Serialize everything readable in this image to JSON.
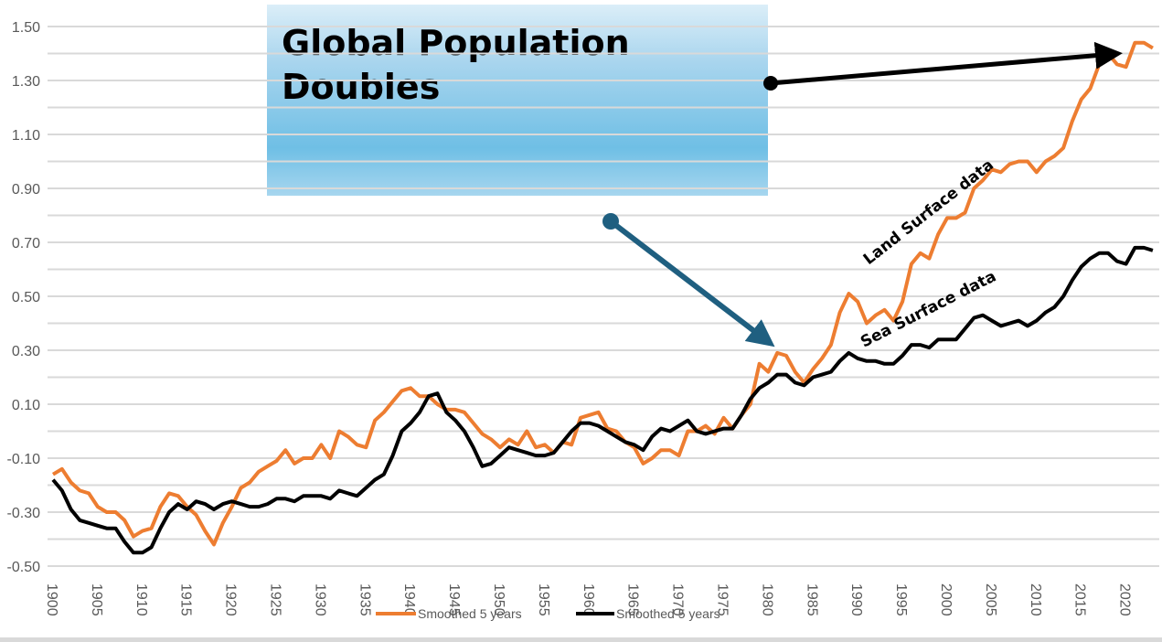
{
  "callout": {
    "title": "Global Population Doubles",
    "fill_top": "#dbeef8",
    "fill_mid": "#6fbfe5"
  },
  "annotations": {
    "land": "Land Surface data",
    "sea": "Sea Surface data"
  },
  "chart_data": {
    "type": "line",
    "title": "",
    "xlabel": "",
    "ylabel": "",
    "xlim": [
      1900,
      2023
    ],
    "ylim": [
      -0.5,
      1.5
    ],
    "yticks": [
      "-0.50",
      "-0.30",
      "-0.10",
      "0.10",
      "0.30",
      "0.50",
      "0.70",
      "0.90",
      "1.10",
      "1.30",
      "1.50"
    ],
    "ytick_values": [
      -0.5,
      -0.3,
      -0.1,
      0.1,
      0.3,
      0.5,
      0.7,
      0.9,
      1.1,
      1.3,
      1.5
    ],
    "xticks": [
      1900,
      1905,
      1910,
      1915,
      1920,
      1925,
      1930,
      1935,
      1940,
      1945,
      1950,
      1955,
      1960,
      1965,
      1970,
      1975,
      1980,
      1985,
      1990,
      1995,
      2000,
      2005,
      2010,
      2015,
      2020
    ],
    "grid": true,
    "legend_position": "bottom",
    "x_start": 1900,
    "series": [
      {
        "name": "Smoothed 5 years",
        "color": "#ed7d31",
        "values": [
          -0.16,
          -0.14,
          -0.19,
          -0.22,
          -0.23,
          -0.28,
          -0.3,
          -0.3,
          -0.33,
          -0.39,
          -0.37,
          -0.36,
          -0.28,
          -0.23,
          -0.24,
          -0.28,
          -0.31,
          -0.37,
          -0.42,
          -0.34,
          -0.28,
          -0.21,
          -0.19,
          -0.15,
          -0.13,
          -0.11,
          -0.07,
          -0.12,
          -0.1,
          -0.1,
          -0.05,
          -0.1,
          0.0,
          -0.02,
          -0.05,
          -0.06,
          0.04,
          0.07,
          0.11,
          0.15,
          0.16,
          0.13,
          0.13,
          0.1,
          0.08,
          0.08,
          0.07,
          0.03,
          -0.01,
          -0.03,
          -0.06,
          -0.03,
          -0.05,
          0.0,
          -0.06,
          -0.05,
          -0.08,
          -0.04,
          -0.05,
          0.05,
          0.06,
          0.07,
          0.01,
          0.0,
          -0.04,
          -0.06,
          -0.12,
          -0.1,
          -0.07,
          -0.07,
          -0.09,
          0.0,
          0.0,
          0.02,
          -0.01,
          0.05,
          0.01,
          0.06,
          0.1,
          0.25,
          0.22,
          0.29,
          0.28,
          0.22,
          0.18,
          0.23,
          0.27,
          0.32,
          0.44,
          0.51,
          0.48,
          0.4,
          0.43,
          0.45,
          0.41,
          0.48,
          0.62,
          0.66,
          0.64,
          0.73,
          0.79,
          0.79,
          0.81,
          0.9,
          0.93,
          0.97,
          0.96,
          0.99,
          1.0,
          1.0,
          0.96,
          1.0,
          1.02,
          1.05,
          1.15,
          1.23,
          1.27,
          1.36,
          1.4,
          1.36,
          1.35,
          1.44,
          1.44,
          1.42
        ]
      },
      {
        "name": "Smoothed 5 years",
        "color": "#000000",
        "values": [
          -0.18,
          -0.22,
          -0.29,
          -0.33,
          -0.34,
          -0.35,
          -0.36,
          -0.36,
          -0.41,
          -0.45,
          -0.45,
          -0.43,
          -0.36,
          -0.3,
          -0.27,
          -0.29,
          -0.26,
          -0.27,
          -0.29,
          -0.27,
          -0.26,
          -0.27,
          -0.28,
          -0.28,
          -0.27,
          -0.25,
          -0.25,
          -0.26,
          -0.24,
          -0.24,
          -0.24,
          -0.25,
          -0.22,
          -0.23,
          -0.24,
          -0.21,
          -0.18,
          -0.16,
          -0.09,
          0.0,
          0.03,
          0.07,
          0.13,
          0.14,
          0.07,
          0.04,
          0.0,
          -0.06,
          -0.13,
          -0.12,
          -0.09,
          -0.06,
          -0.07,
          -0.08,
          -0.09,
          -0.09,
          -0.08,
          -0.04,
          0.0,
          0.03,
          0.03,
          0.02,
          0.0,
          -0.02,
          -0.04,
          -0.05,
          -0.07,
          -0.02,
          0.01,
          0.0,
          0.02,
          0.04,
          0.0,
          -0.01,
          0.0,
          0.01,
          0.01,
          0.06,
          0.12,
          0.16,
          0.18,
          0.21,
          0.21,
          0.18,
          0.17,
          0.2,
          0.21,
          0.22,
          0.26,
          0.29,
          0.27,
          0.26,
          0.26,
          0.25,
          0.25,
          0.28,
          0.32,
          0.32,
          0.31,
          0.34,
          0.34,
          0.34,
          0.38,
          0.42,
          0.43,
          0.41,
          0.39,
          0.4,
          0.41,
          0.39,
          0.41,
          0.44,
          0.46,
          0.5,
          0.56,
          0.61,
          0.64,
          0.66,
          0.66,
          0.63,
          0.62,
          0.68,
          0.68,
          0.67
        ]
      }
    ]
  },
  "arrows": {
    "population_arrow_color": "#000000",
    "pointer_arrow_color": "#1f5f80"
  }
}
